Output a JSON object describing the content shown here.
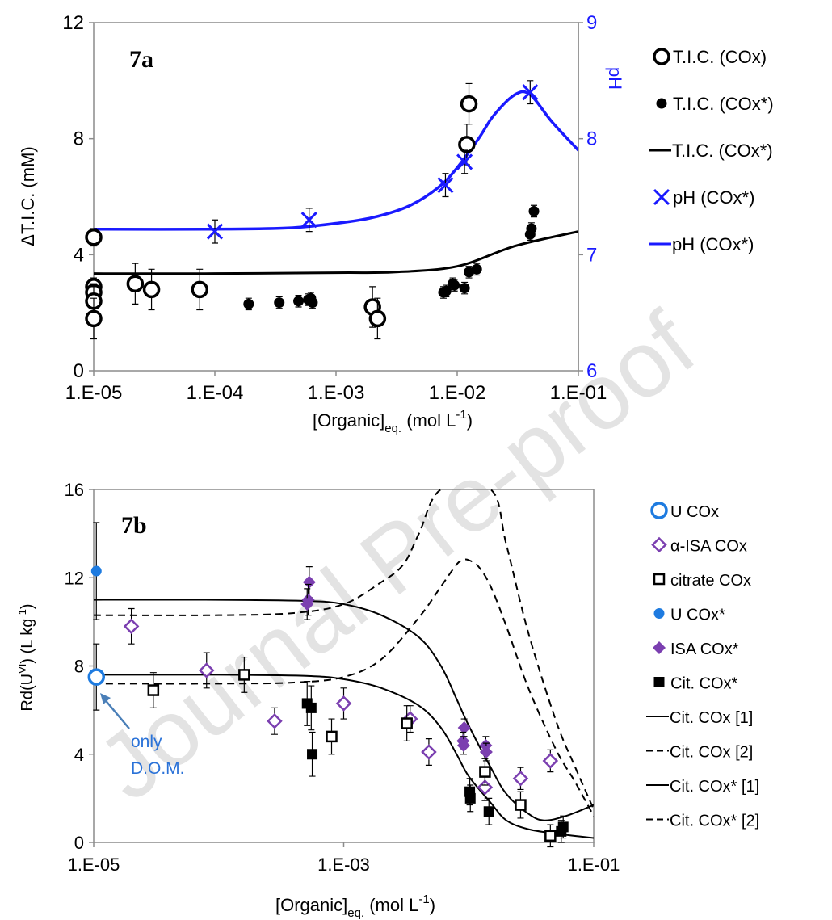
{
  "watermark": "Journal Pre-proof",
  "chart_data": [
    {
      "id": "7a",
      "type": "scatter",
      "title": "7a",
      "xscale": "log",
      "xlim": [
        1e-05,
        0.1
      ],
      "xticks": [
        "1.E-05",
        "1.E-04",
        "1.E-03",
        "1.E-02",
        "1.E-01"
      ],
      "xlabel": "[Organic]",
      "xlabel_sub": "eq.",
      "xlabel_tail": " (mol L",
      "xlabel_sup": "-1",
      "xlabel_close": ")",
      "ylabel": "ΔT.I.C. (mM)",
      "ylim": [
        0,
        12
      ],
      "yticks": [
        "0",
        "4",
        "8",
        "12"
      ],
      "y2label": "pH",
      "y2lim": [
        6,
        9
      ],
      "y2ticks": [
        "6",
        "7",
        "8",
        "9"
      ],
      "legend_position": "right",
      "colors": {
        "black": "#000000",
        "blue": "#1a1aff"
      },
      "series": [
        {
          "name": "T.I.C. (COx)",
          "marker": "open-circle",
          "axis": "left",
          "color": "#000000",
          "points": [
            [
              1e-05,
              4.6,
              0.3
            ],
            [
              1e-05,
              2.9,
              0.3
            ],
            [
              1e-05,
              2.7,
              0.3
            ],
            [
              1e-05,
              2.4,
              0.5
            ],
            [
              1e-05,
              1.8,
              0.7
            ],
            [
              2.2e-05,
              3.0,
              0.7
            ],
            [
              3e-05,
              2.8,
              0.7
            ],
            [
              7.5e-05,
              2.8,
              0.7
            ],
            [
              0.002,
              2.2,
              0.7
            ],
            [
              0.0022,
              1.8,
              0.7
            ],
            [
              0.012,
              7.8,
              0.7
            ],
            [
              0.0125,
              9.2,
              0.7
            ]
          ]
        },
        {
          "name": "T.I.C. (COx*)",
          "marker": "filled-circle",
          "axis": "left",
          "color": "#000000",
          "points": [
            [
              0.00019,
              2.3,
              0.2
            ],
            [
              0.00034,
              2.35,
              0.2
            ],
            [
              0.00049,
              2.4,
              0.2
            ],
            [
              0.00059,
              2.45,
              0.2
            ],
            [
              0.00062,
              2.5,
              0.2
            ],
            [
              0.00064,
              2.35,
              0.2
            ],
            [
              0.0077,
              2.7,
              0.2
            ],
            [
              0.0081,
              2.75,
              0.2
            ],
            [
              0.0092,
              3.0,
              0.2
            ],
            [
              0.0095,
              2.95,
              0.2
            ],
            [
              0.0115,
              2.85,
              0.2
            ],
            [
              0.0125,
              3.4,
              0.2
            ],
            [
              0.0145,
              3.5,
              0.2
            ],
            [
              0.04,
              4.7,
              0.2
            ],
            [
              0.041,
              4.9,
              0.2
            ],
            [
              0.043,
              5.5,
              0.2
            ]
          ]
        },
        {
          "name": "T.I.C. (COx*)",
          "marker": "line",
          "axis": "left",
          "color": "#000000",
          "points": [
            [
              1e-05,
              3.35
            ],
            [
              0.0001,
              3.35
            ],
            [
              0.001,
              3.38
            ],
            [
              0.003,
              3.4
            ],
            [
              0.01,
              3.6
            ],
            [
              0.03,
              4.3
            ],
            [
              0.1,
              4.8
            ]
          ]
        },
        {
          "name": "pH (COx*)",
          "marker": "x",
          "axis": "right",
          "color": "#1a1aff",
          "points": [
            [
              0.0001,
              7.2,
              0.1
            ],
            [
              0.0006,
              7.3,
              0.1
            ],
            [
              0.008,
              7.6,
              0.1
            ],
            [
              0.0115,
              7.8,
              0.1
            ],
            [
              0.04,
              8.4,
              0.1
            ]
          ]
        },
        {
          "name": "pH (COx*)",
          "marker": "line",
          "axis": "right",
          "color": "#1a1aff",
          "points": [
            [
              1e-05,
              7.22
            ],
            [
              0.0001,
              7.22
            ],
            [
              0.0004,
              7.23
            ],
            [
              0.001,
              7.27
            ],
            [
              0.002,
              7.32
            ],
            [
              0.004,
              7.42
            ],
            [
              0.007,
              7.58
            ],
            [
              0.01,
              7.75
            ],
            [
              0.015,
              8.0
            ],
            [
              0.02,
              8.2
            ],
            [
              0.03,
              8.38
            ],
            [
              0.04,
              8.38
            ],
            [
              0.06,
              8.15
            ],
            [
              0.1,
              7.9
            ]
          ]
        }
      ]
    },
    {
      "id": "7b",
      "type": "scatter",
      "title": "7b",
      "xscale": "log",
      "xlim": [
        1e-05,
        0.1
      ],
      "xticks": [
        "1.E-05",
        "1.E-03",
        "1.E-01"
      ],
      "xlabel": "[Organic]",
      "xlabel_sub": "eq.",
      "xlabel_tail": " (mol L",
      "xlabel_sup": "-1",
      "xlabel_close": ")",
      "ylabel": "Rd(U",
      "ylabel_sup": "VI",
      "ylabel_tail": ")  (L kg",
      "ylabel_sup2": "-1",
      "ylabel_close": ")",
      "ylim": [
        0,
        16
      ],
      "yticks": [
        "0",
        "4",
        "8",
        "12",
        "16"
      ],
      "annotation": [
        "only",
        "D.O.M."
      ],
      "legend_position": "right",
      "colors": {
        "ucox": "#1e7be0",
        "isa": "#7b3fb0",
        "black": "#000000"
      },
      "series": [
        {
          "name": "U COx",
          "marker": "open-circle",
          "color": "#1e7be0",
          "points": [
            [
              1.05e-05,
              7.5,
              1.5
            ]
          ]
        },
        {
          "name": "α-ISA COx",
          "marker": "open-diamond",
          "color": "#7b3fb0",
          "points": [
            [
              2e-05,
              9.8,
              0.8
            ],
            [
              8e-05,
              7.8,
              0.8
            ],
            [
              0.00028,
              5.5,
              0.6
            ],
            [
              0.001,
              6.3,
              0.7
            ],
            [
              0.0034,
              5.6,
              0.6
            ],
            [
              0.0048,
              4.1,
              0.6
            ],
            [
              0.0135,
              2.5,
              0.6
            ],
            [
              0.026,
              2.9,
              0.5
            ],
            [
              0.045,
              3.7,
              0.5
            ]
          ]
        },
        {
          "name": "citrate COx",
          "marker": "open-square",
          "color": "#000000",
          "points": [
            [
              3e-05,
              6.9,
              0.8
            ],
            [
              0.00016,
              7.6,
              0.8
            ],
            [
              0.0008,
              4.8,
              0.8
            ],
            [
              0.0032,
              5.4,
              0.8
            ],
            [
              0.0135,
              3.2,
              0.6
            ],
            [
              0.026,
              1.7,
              0.6
            ],
            [
              0.045,
              0.3,
              0.5
            ]
          ]
        },
        {
          "name": "U COx*",
          "marker": "filled-circle",
          "color": "#1e7be0",
          "points": [
            [
              1.05e-05,
              12.3,
              2.2
            ]
          ]
        },
        {
          "name": "ISA COx*",
          "marker": "filled-diamond",
          "color": "#7b3fb0",
          "points": [
            [
              0.00053,
              11.8,
              0.7
            ],
            [
              0.00052,
              11.0,
              0.7
            ],
            [
              0.00051,
              10.8,
              0.7
            ],
            [
              0.0092,
              5.2,
              0.4
            ],
            [
              0.009,
              4.6,
              0.4
            ],
            [
              0.0091,
              4.4,
              0.4
            ],
            [
              0.0137,
              4.4,
              0.4
            ],
            [
              0.0138,
              4.1,
              0.4
            ]
          ]
        },
        {
          "name": "Cit. COx*",
          "marker": "filled-square",
          "color": "#000000",
          "points": [
            [
              0.00051,
              6.3,
              1.0
            ],
            [
              0.00055,
              6.1,
              1.0
            ],
            [
              0.00056,
              4.0,
              1.0
            ],
            [
              0.0102,
              2.3,
              0.6
            ],
            [
              0.0103,
              2.0,
              0.6
            ],
            [
              0.0145,
              1.4,
              0.6
            ],
            [
              0.055,
              0.5,
              0.5
            ],
            [
              0.057,
              0.7,
              0.5
            ]
          ]
        },
        {
          "name": "Cit. COx [1]",
          "marker": "line",
          "dash": "solid",
          "color": "#000000",
          "points": [
            [
              1e-05,
              7.6
            ],
            [
              0.0001,
              7.6
            ],
            [
              0.0005,
              7.55
            ],
            [
              0.001,
              7.4
            ],
            [
              0.002,
              7.0
            ],
            [
              0.004,
              6.2
            ],
            [
              0.006,
              5.2
            ],
            [
              0.008,
              4.0
            ],
            [
              0.01,
              3.0
            ],
            [
              0.015,
              1.8
            ],
            [
              0.02,
              1.0
            ],
            [
              0.03,
              0.6
            ],
            [
              0.05,
              0.4
            ],
            [
              0.1,
              0.2
            ]
          ]
        },
        {
          "name": "Cit. COx [2]",
          "marker": "line",
          "dash": "dashed",
          "color": "#000000",
          "points": [
            [
              1e-05,
              7.2
            ],
            [
              0.0001,
              7.2
            ],
            [
              0.0004,
              7.25
            ],
            [
              0.001,
              7.5
            ],
            [
              0.002,
              8.3
            ],
            [
              0.004,
              10.2
            ],
            [
              0.006,
              11.6
            ],
            [
              0.008,
              12.6
            ],
            [
              0.009,
              12.8
            ],
            [
              0.01,
              12.8
            ],
            [
              0.012,
              12.5
            ],
            [
              0.015,
              11.6
            ],
            [
              0.02,
              9.8
            ],
            [
              0.03,
              7.0
            ],
            [
              0.05,
              4.2
            ],
            [
              0.07,
              2.8
            ],
            [
              0.1,
              1.2
            ]
          ]
        },
        {
          "name": "Cit. COx* [1]",
          "marker": "line",
          "dash": "solid",
          "color": "#000000",
          "points": [
            [
              1e-05,
              11.0
            ],
            [
              0.0001,
              11.0
            ],
            [
              0.0005,
              10.95
            ],
            [
              0.001,
              10.8
            ],
            [
              0.002,
              10.3
            ],
            [
              0.004,
              9.3
            ],
            [
              0.006,
              8.0
            ],
            [
              0.008,
              6.5
            ],
            [
              0.01,
              5.3
            ],
            [
              0.015,
              3.4
            ],
            [
              0.02,
              2.2
            ],
            [
              0.03,
              1.3
            ],
            [
              0.04,
              1.0
            ],
            [
              0.06,
              1.2
            ],
            [
              0.1,
              1.7
            ]
          ]
        },
        {
          "name": "Cit. COx* [2]",
          "marker": "line",
          "dash": "dashed",
          "color": "#000000",
          "points": [
            [
              1e-05,
              10.3
            ],
            [
              0.0001,
              10.3
            ],
            [
              0.0004,
              10.4
            ],
            [
              0.001,
              10.8
            ],
            [
              0.002,
              11.8
            ],
            [
              0.003,
              12.6
            ],
            [
              0.004,
              14.0
            ],
            [
              0.006,
              16.0
            ],
            [
              0.015,
              16.0
            ],
            [
              0.02,
              13.5
            ],
            [
              0.03,
              9.5
            ],
            [
              0.05,
              5.5
            ],
            [
              0.07,
              3.5
            ],
            [
              0.1,
              1.5
            ]
          ]
        }
      ]
    }
  ]
}
